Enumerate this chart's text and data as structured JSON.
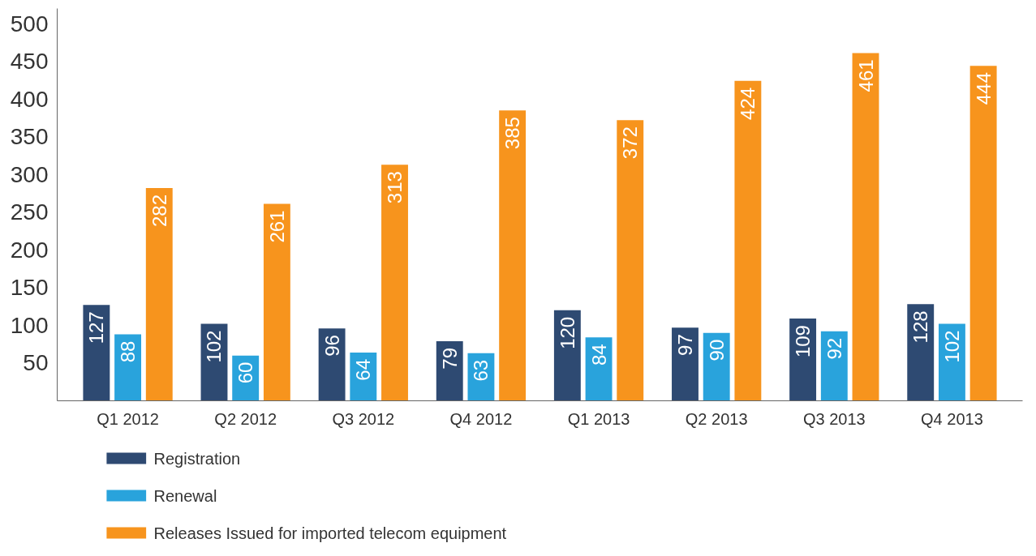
{
  "chart_data": {
    "type": "bar",
    "categories": [
      "Q1 2012",
      "Q2 2012",
      "Q3 2012",
      "Q4 2012",
      "Q1 2013",
      "Q2 2013",
      "Q3 2013",
      "Q4 2013"
    ],
    "series": [
      {
        "name": "Registration",
        "color": "#2e4a72",
        "values": [
          127,
          102,
          96,
          79,
          120,
          97,
          109,
          128
        ]
      },
      {
        "name": "Renewal",
        "color": "#29a3dc",
        "values": [
          88,
          60,
          64,
          63,
          84,
          90,
          92,
          102
        ]
      },
      {
        "name": "Releases Issued for imported telecom equipment",
        "color": "#f7941d",
        "values": [
          282,
          261,
          313,
          385,
          372,
          424,
          461,
          444
        ]
      }
    ],
    "ylim": [
      0,
      520
    ],
    "yticks": [
      50,
      100,
      150,
      200,
      250,
      300,
      350,
      400,
      450,
      500
    ],
    "data_labels": true,
    "grid": false,
    "legend": "bottom"
  }
}
